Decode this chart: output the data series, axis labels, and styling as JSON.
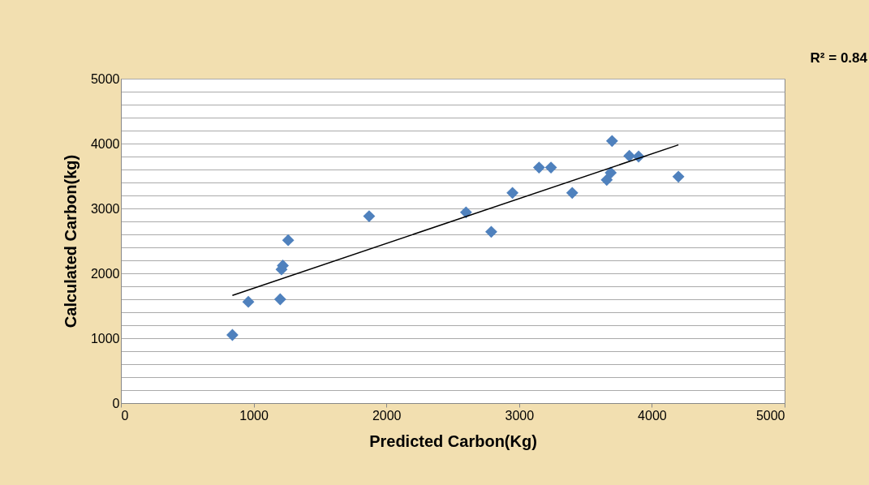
{
  "chart_data": {
    "type": "scatter",
    "xlabel": "Predicted Carbon(Kg)",
    "ylabel": "Calculated Carbon(kg)",
    "annotations": [
      "R² = 0.84"
    ],
    "grid": "y",
    "xlim": [
      0,
      5000
    ],
    "xticks": [
      0,
      1000,
      2000,
      3000,
      4000,
      5000
    ],
    "ylim": [
      0,
      5000
    ],
    "yticks": [
      0,
      {
        "value": 200,
        "label": null
      },
      {
        "value": 400,
        "label": null
      },
      {
        "value": 600,
        "label": null
      },
      {
        "value": 800,
        "label": null
      },
      1000,
      {
        "value": 1200,
        "label": null
      },
      {
        "value": 1400,
        "label": null
      },
      {
        "value": 1600,
        "label": null
      },
      {
        "value": 1800,
        "label": null
      },
      2000,
      {
        "value": 2200,
        "label": null
      },
      {
        "value": 2400,
        "label": null
      },
      {
        "value": 2600,
        "label": null
      },
      {
        "value": 2800,
        "label": null
      },
      3000,
      {
        "value": 3200,
        "label": null
      },
      {
        "value": 3400,
        "label": null
      },
      {
        "value": 3600,
        "label": null
      },
      {
        "value": 3800,
        "label": null
      },
      4000,
      {
        "value": 4200,
        "label": null
      },
      {
        "value": 4400,
        "label": null
      },
      {
        "value": 4600,
        "label": null
      },
      {
        "value": 4800,
        "label": null
      },
      5000
    ],
    "series": [
      {
        "type": "scatter",
        "marker": "diamond",
        "color": "#4f81bd",
        "x": [
          840,
          960,
          1200,
          1210,
          1220,
          1260,
          1870,
          2600,
          2790,
          2950,
          3150,
          3240,
          3400,
          3660,
          3690,
          3700,
          3830,
          3900,
          4200
        ],
        "values": [
          1050,
          1560,
          1600,
          2060,
          2120,
          2510,
          2880,
          2940,
          2640,
          3240,
          3630,
          3630,
          3240,
          3440,
          3550,
          4040,
          3810,
          3800,
          3490
        ]
      },
      {
        "type": "line",
        "color": "#000000",
        "x": [
          840,
          4200
        ],
        "values": [
          1660,
          3980
        ]
      }
    ]
  }
}
